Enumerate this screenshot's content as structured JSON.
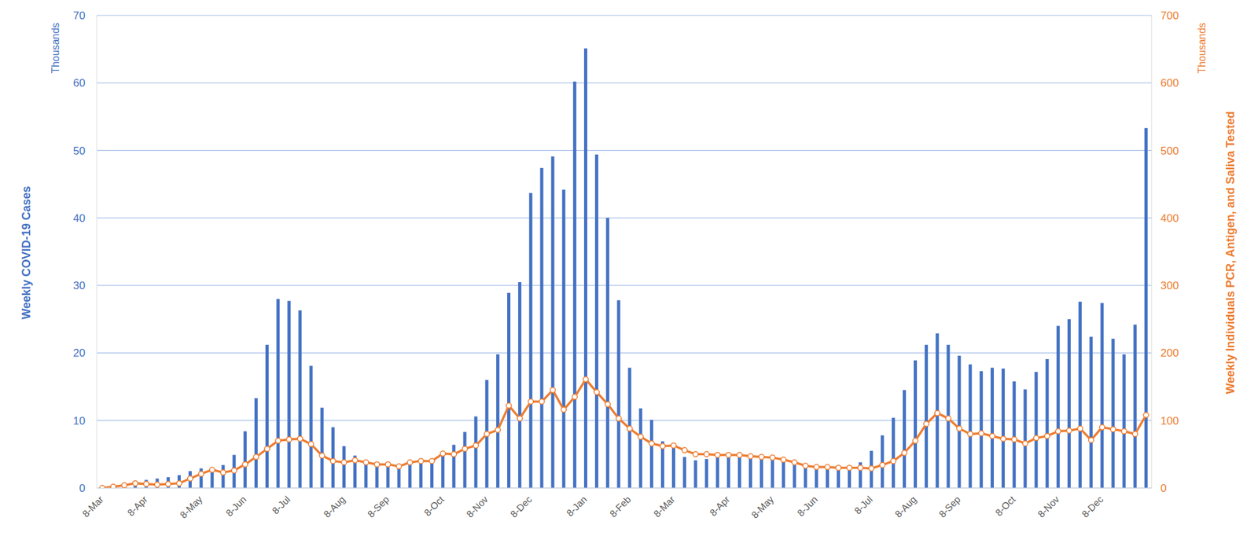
{
  "chart_data": {
    "type": "bar",
    "ylabel": "Weekly COVID-19 Cases",
    "y2label": "Weekly Individuals PCR, Antigen, and Saliva Tested",
    "annotations": [
      {
        "text": "Thousands",
        "axis": "y"
      },
      {
        "text": "Thousands",
        "axis": "y2"
      }
    ],
    "categories": [
      "8-Mar",
      null,
      null,
      null,
      "8-Apr",
      null,
      null,
      null,
      null,
      "8-May",
      null,
      null,
      null,
      "8-Jun",
      null,
      null,
      null,
      "8-Jul",
      null,
      null,
      null,
      null,
      "8-Aug",
      null,
      null,
      null,
      "8-Sep",
      null,
      null,
      null,
      null,
      "8-Oct",
      null,
      null,
      null,
      "8-Nov",
      null,
      null,
      null,
      "8-Dec",
      null,
      null,
      null,
      null,
      "8-Jan",
      null,
      null,
      null,
      "8-Feb",
      null,
      null,
      null,
      "8-Mar",
      null,
      null,
      null,
      null,
      "8-Apr",
      null,
      null,
      null,
      "8-May",
      null,
      null,
      null,
      "8-Jun",
      null,
      null,
      null,
      null,
      "8-Jul",
      null,
      null,
      null,
      "8-Aug",
      null,
      null,
      null,
      "8-Sep",
      null,
      null,
      null,
      null,
      "8-Oct",
      null,
      null,
      null,
      "8-Nov",
      null,
      null,
      null,
      "8-Dec",
      null,
      null,
      null,
      null
    ],
    "series": [
      {
        "type": "bar",
        "color": "#4472c4",
        "values": [
          0.1,
          0.3,
          0.6,
          0.9,
          1.2,
          1.4,
          1.6,
          1.9,
          2.5,
          2.9,
          3.0,
          3.4,
          4.9,
          8.4,
          13.3,
          21.2,
          28.0,
          27.7,
          26.3,
          18.1,
          11.9,
          9.0,
          6.2,
          4.8,
          3.9,
          3.4,
          3.2,
          3.0,
          3.5,
          3.8,
          4.2,
          5.0,
          6.4,
          8.3,
          10.6,
          16.0,
          19.8,
          28.9,
          30.5,
          43.7,
          47.4,
          49.1,
          44.2,
          60.2,
          65.1,
          49.4,
          40.0,
          27.8,
          17.8,
          11.8,
          10.1,
          6.9,
          6.2,
          4.6,
          4.1,
          4.3,
          4.7,
          4.9,
          5.0,
          4.8,
          4.4,
          4.3,
          4.0,
          3.8,
          3.4,
          3.1,
          2.9,
          2.8,
          3.2,
          3.8,
          5.5,
          7.8,
          10.4,
          14.5,
          18.9,
          21.2,
          22.9,
          21.2,
          19.6,
          18.3,
          17.3,
          17.8,
          17.7,
          15.8,
          14.6,
          17.2,
          19.1,
          24.0,
          25.0,
          27.6,
          22.4,
          27.4,
          22.1,
          19.8,
          24.2,
          53.3
        ]
      },
      {
        "type": "line",
        "axis": "y2",
        "color": "#ed7d31",
        "marker": "o",
        "values": [
          0,
          2,
          4,
          7,
          6,
          5,
          6,
          7,
          14,
          21,
          27,
          23,
          26,
          35,
          46,
          58,
          70,
          72,
          73,
          65,
          48,
          40,
          38,
          41,
          38,
          35,
          35,
          32,
          38,
          40,
          40,
          51,
          50,
          58,
          63,
          80,
          86,
          122,
          103,
          128,
          128,
          145,
          116,
          135,
          161,
          142,
          124,
          103,
          88,
          76,
          66,
          62,
          63,
          56,
          50,
          50,
          49,
          49,
          49,
          47,
          46,
          45,
          42,
          38,
          33,
          31,
          31,
          30,
          30,
          30,
          29,
          34,
          40,
          52,
          70,
          95,
          111,
          103,
          88,
          80,
          81,
          77,
          73,
          72,
          66,
          74,
          77,
          84,
          85,
          88,
          71,
          90,
          87,
          84,
          80,
          108
        ]
      }
    ],
    "ylim": [
      0,
      70
    ],
    "yticks": [
      0,
      10,
      20,
      30,
      40,
      50,
      60,
      70
    ],
    "y2lim": [
      0,
      700
    ],
    "y2ticks": [
      0,
      100,
      200,
      300,
      400,
      500,
      600,
      700
    ],
    "grid": true
  }
}
